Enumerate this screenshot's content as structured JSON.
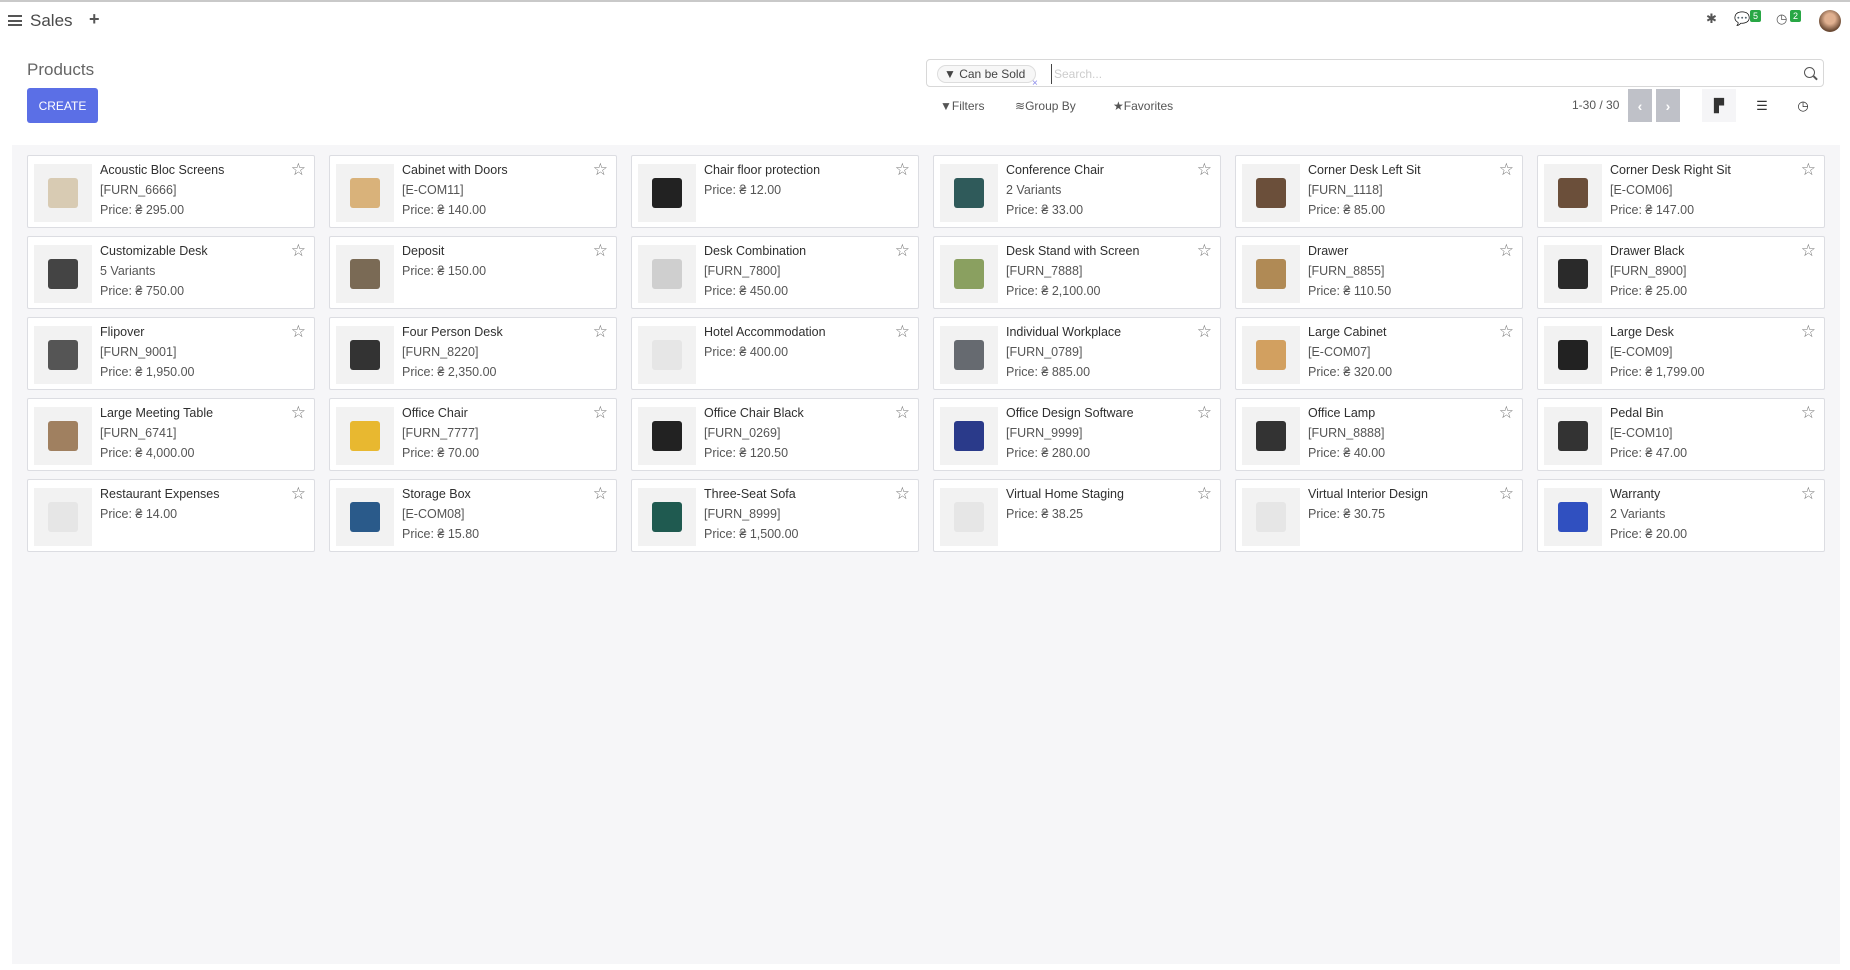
{
  "topbar": {
    "app": "Sales",
    "plus": "+",
    "messages_count": "5",
    "activities_count": "2"
  },
  "control": {
    "title": "Products",
    "create": "CREATE",
    "facet": "Can be Sold",
    "facet_remove": "×",
    "search_placeholder": "Search...",
    "filters": "Filters",
    "group_by": "Group By",
    "favorites": "Favorites",
    "pager": "1-30 / 30",
    "prev": "‹",
    "next": "›"
  },
  "colors": {
    "primary": "#5b6fe6",
    "badge": "#28a745"
  },
  "products": [
    {
      "name": "Acoustic Bloc Screens",
      "sub": "[FURN_6666]",
      "price": "Price: ₴ 295.00",
      "img": "#d8cbb3"
    },
    {
      "name": "Cabinet with Doors",
      "sub": "[E-COM11]",
      "price": "Price: ₴ 140.00",
      "img": "#d9b27a"
    },
    {
      "name": "Chair floor protection",
      "sub": "",
      "price": "Price: ₴ 12.00",
      "img": "#222222"
    },
    {
      "name": "Conference Chair",
      "sub": "2 Variants",
      "price": "Price: ₴ 33.00",
      "img": "#2f5a5a"
    },
    {
      "name": "Corner Desk Left Sit",
      "sub": "[FURN_1118]",
      "price": "Price: ₴ 85.00",
      "img": "#6b4f3a"
    },
    {
      "name": "Corner Desk Right Sit",
      "sub": "[E-COM06]",
      "price": "Price: ₴ 147.00",
      "img": "#6b4f3a"
    },
    {
      "name": "Customizable Desk",
      "sub": "5 Variants",
      "price": "Price: ₴ 750.00",
      "img": "#444444"
    },
    {
      "name": "Deposit",
      "sub": "",
      "price": "Price: ₴ 150.00",
      "img": "#7a6a55"
    },
    {
      "name": "Desk Combination",
      "sub": "[FURN_7800]",
      "price": "Price: ₴ 450.00",
      "img": "#cfcfcf"
    },
    {
      "name": "Desk Stand with Screen",
      "sub": "[FURN_7888]",
      "price": "Price: ₴ 2,100.00",
      "img": "#8aa060"
    },
    {
      "name": "Drawer",
      "sub": "[FURN_8855]",
      "price": "Price: ₴ 110.50",
      "img": "#b08a55"
    },
    {
      "name": "Drawer Black",
      "sub": "[FURN_8900]",
      "price": "Price: ₴ 25.00",
      "img": "#2a2a2a"
    },
    {
      "name": "Flipover",
      "sub": "[FURN_9001]",
      "price": "Price: ₴ 1,950.00",
      "img": "#555555"
    },
    {
      "name": "Four Person Desk",
      "sub": "[FURN_8220]",
      "price": "Price: ₴ 2,350.00",
      "img": "#333333"
    },
    {
      "name": "Hotel Accommodation",
      "sub": "",
      "price": "Price: ₴ 400.00",
      "img": "#e6e6e6"
    },
    {
      "name": "Individual Workplace",
      "sub": "[FURN_0789]",
      "price": "Price: ₴ 885.00",
      "img": "#666a70"
    },
    {
      "name": "Large Cabinet",
      "sub": "[E-COM07]",
      "price": "Price: ₴ 320.00",
      "img": "#d2a060"
    },
    {
      "name": "Large Desk",
      "sub": "[E-COM09]",
      "price": "Price: ₴ 1,799.00",
      "img": "#222222"
    },
    {
      "name": "Large Meeting Table",
      "sub": "[FURN_6741]",
      "price": "Price: ₴ 4,000.00",
      "img": "#a08060"
    },
    {
      "name": "Office Chair",
      "sub": "[FURN_7777]",
      "price": "Price: ₴ 70.00",
      "img": "#e8b830"
    },
    {
      "name": "Office Chair Black",
      "sub": "[FURN_0269]",
      "price": "Price: ₴ 120.50",
      "img": "#222222"
    },
    {
      "name": "Office Design Software",
      "sub": "[FURN_9999]",
      "price": "Price: ₴ 280.00",
      "img": "#2a3a8a"
    },
    {
      "name": "Office Lamp",
      "sub": "[FURN_8888]",
      "price": "Price: ₴ 40.00",
      "img": "#333333"
    },
    {
      "name": "Pedal Bin",
      "sub": "[E-COM10]",
      "price": "Price: ₴ 47.00",
      "img": "#333333"
    },
    {
      "name": "Restaurant Expenses",
      "sub": "",
      "price": "Price: ₴ 14.00",
      "img": "#e6e6e6"
    },
    {
      "name": "Storage Box",
      "sub": "[E-COM08]",
      "price": "Price: ₴ 15.80",
      "img": "#2a5a8a"
    },
    {
      "name": "Three-Seat Sofa",
      "sub": "[FURN_8999]",
      "price": "Price: ₴ 1,500.00",
      "img": "#1f5a50"
    },
    {
      "name": "Virtual Home Staging",
      "sub": "",
      "price": "Price: ₴ 38.25",
      "img": "#e6e6e6"
    },
    {
      "name": "Virtual Interior Design",
      "sub": "",
      "price": "Price: ₴ 30.75",
      "img": "#e6e6e6"
    },
    {
      "name": "Warranty",
      "sub": "2 Variants",
      "price": "Price: ₴ 20.00",
      "img": "#3050c0"
    }
  ]
}
